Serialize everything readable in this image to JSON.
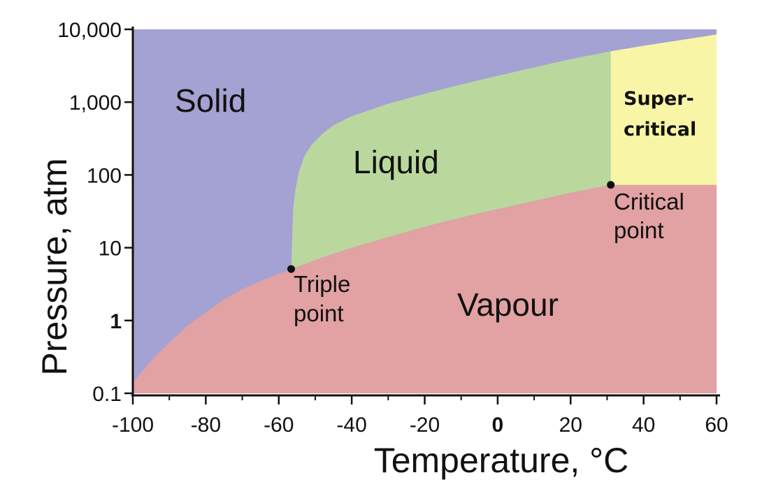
{
  "chart_data": {
    "type": "area",
    "title": "",
    "xlabel": "Temperature, °C",
    "ylabel": "Pressure, atm",
    "xlim": [
      -100,
      60
    ],
    "ylim": [
      0.1,
      10000
    ],
    "y_scale": "log",
    "grid": false,
    "x_ticks": [
      {
        "value": -100,
        "label": "-100"
      },
      {
        "value": -80,
        "label": "-80"
      },
      {
        "value": -60,
        "label": "-60"
      },
      {
        "value": -40,
        "label": "-40"
      },
      {
        "value": -20,
        "label": "-20"
      },
      {
        "value": 0,
        "label": "0",
        "bold": true
      },
      {
        "value": 20,
        "label": "20"
      },
      {
        "value": 40,
        "label": "40"
      },
      {
        "value": 60,
        "label": "60"
      }
    ],
    "y_ticks": [
      {
        "value": 0.1,
        "label": "0.1"
      },
      {
        "value": 1,
        "label": "1",
        "bold": true
      },
      {
        "value": 10,
        "label": "10"
      },
      {
        "value": 100,
        "label": "100"
      },
      {
        "value": 1000,
        "label": "1,000"
      },
      {
        "value": 10000,
        "label": "10,000"
      }
    ],
    "regions": [
      {
        "name": "Solid",
        "color": "#a3a2d3"
      },
      {
        "name": "Liquid",
        "color": "#bad89e"
      },
      {
        "name": "Vapour",
        "color": "#e2a1a3"
      },
      {
        "name_lines": [
          "Super-",
          "critical"
        ],
        "color": "#f8f6a6"
      }
    ],
    "boundaries": {
      "sublimation": [
        [
          -100,
          0.14
        ],
        [
          -95,
          0.28
        ],
        [
          -90,
          0.5
        ],
        [
          -85,
          0.85
        ],
        [
          -80,
          1.3
        ],
        [
          -75,
          1.95
        ],
        [
          -70,
          2.7
        ],
        [
          -65,
          3.5
        ],
        [
          -60,
          4.35
        ],
        [
          -56.6,
          5.1
        ]
      ],
      "vaporization": [
        [
          -56.6,
          5.1
        ],
        [
          -50,
          6.8
        ],
        [
          -40,
          10
        ],
        [
          -30,
          14
        ],
        [
          -20,
          19.5
        ],
        [
          -10,
          26
        ],
        [
          0,
          34
        ],
        [
          10,
          44
        ],
        [
          20,
          57
        ],
        [
          31,
          73
        ]
      ],
      "melting": [
        [
          -56.6,
          5.1
        ],
        [
          -56.3,
          15
        ],
        [
          -56,
          35
        ],
        [
          -55.5,
          60
        ],
        [
          -54.5,
          110
        ],
        [
          -53,
          180
        ],
        [
          -51,
          260
        ],
        [
          -48,
          370
        ],
        [
          -45,
          480
        ],
        [
          -40,
          640
        ],
        [
          -30,
          950
        ],
        [
          -20,
          1300
        ],
        [
          -10,
          1750
        ],
        [
          0,
          2300
        ],
        [
          10,
          3000
        ],
        [
          20,
          3900
        ],
        [
          31,
          5000
        ],
        [
          40,
          5950
        ],
        [
          50,
          7100
        ],
        [
          60,
          8500
        ]
      ],
      "critical_temperature": 31
    },
    "points": [
      {
        "name_lines": [
          "Triple",
          "point"
        ],
        "x": -56.6,
        "y": 5.1
      },
      {
        "name_lines": [
          "Critical",
          "point"
        ],
        "x": 31,
        "y": 73
      }
    ]
  }
}
